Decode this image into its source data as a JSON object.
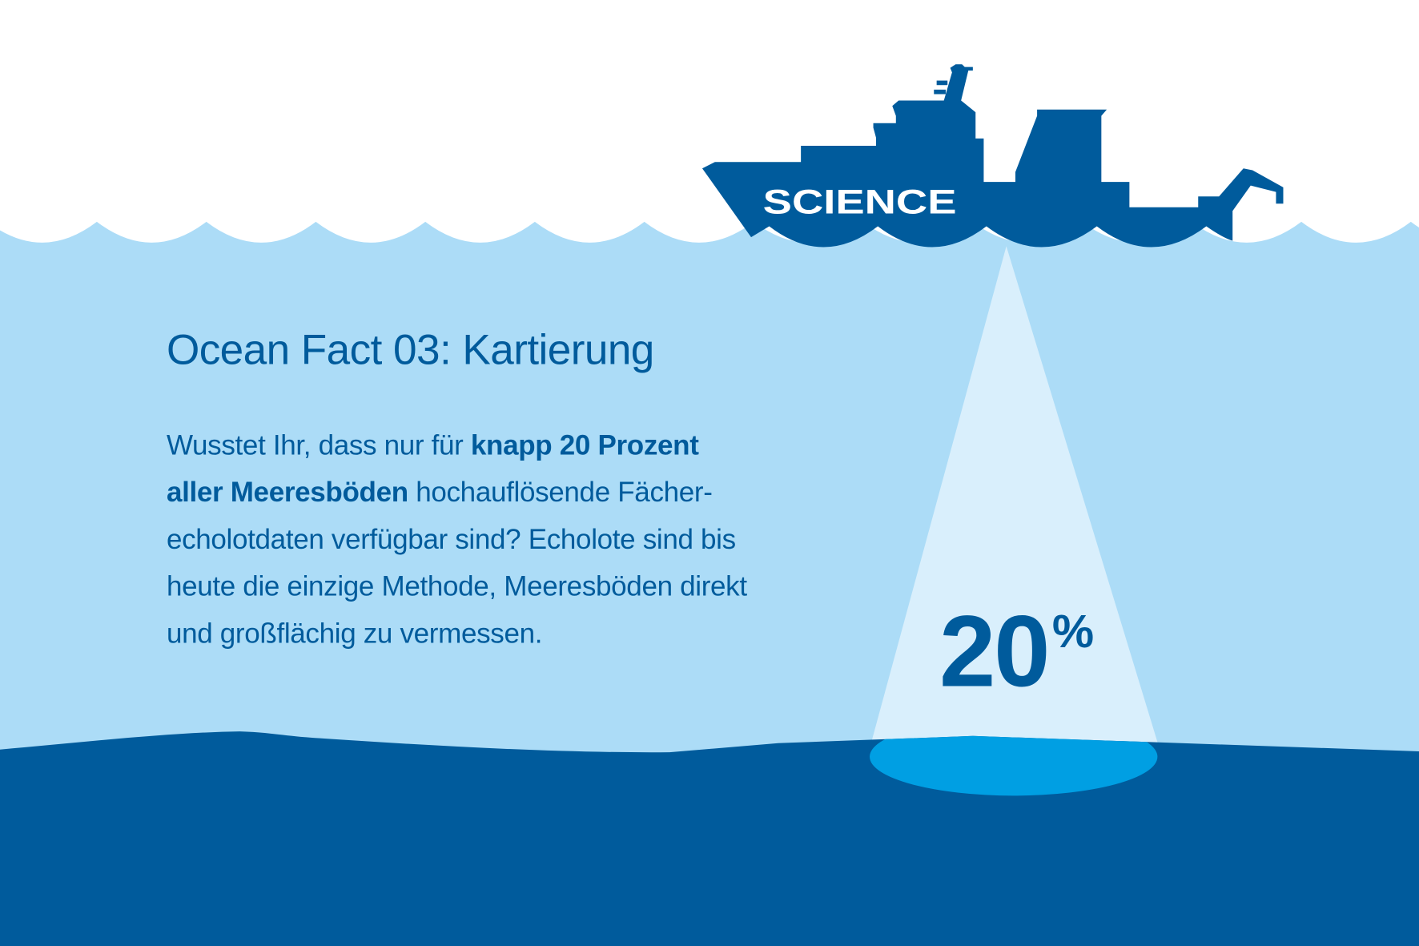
{
  "ship": {
    "label": "SCIENCE"
  },
  "title": "Ocean Fact 03: Kartierung",
  "body_lines": [
    [
      {
        "text": "Wusstet Ihr, dass nur für ",
        "bold": false
      },
      {
        "text": "knapp 20 Prozent",
        "bold": true
      }
    ],
    [
      {
        "text": "aller Meeresböden",
        "bold": true
      },
      {
        "text": " hochauflösende Fächer-",
        "bold": false
      }
    ],
    [
      {
        "text": "echolotdaten verfügbar sind? Echolote sind bis",
        "bold": false
      }
    ],
    [
      {
        "text": "heute die einzige Methode, Meeresböden direkt",
        "bold": false
      }
    ],
    [
      {
        "text": "und großflächig zu vermessen.",
        "bold": false
      }
    ]
  ],
  "stat": {
    "value": "20",
    "unit": "%"
  },
  "colors": {
    "sky": "#ffffff",
    "water": "#acdcf7",
    "ship": "#005b9c",
    "seabed": "#005b9c",
    "sonar_beam": "#d9effc",
    "sonar_spot": "#009fe3",
    "text": "#005b9c"
  }
}
